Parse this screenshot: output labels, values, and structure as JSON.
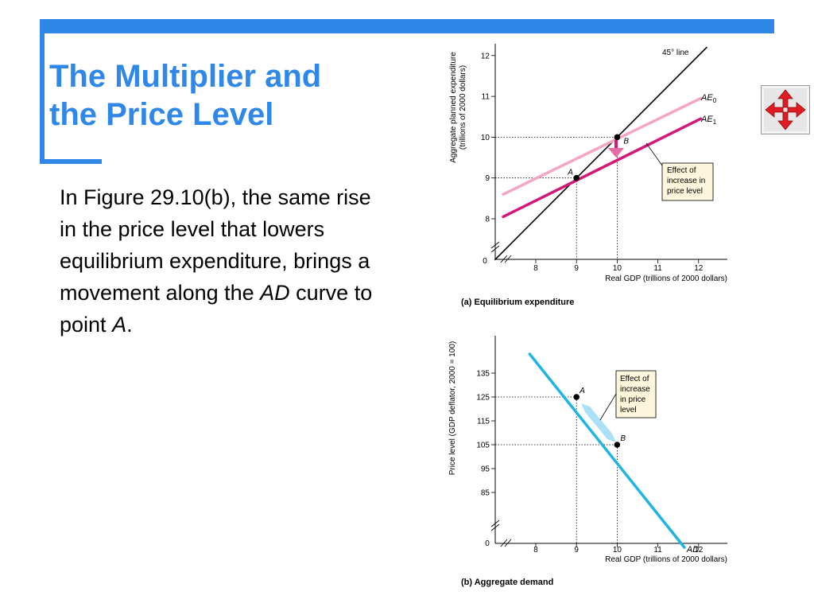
{
  "slide": {
    "title_line1": "The Multiplier and",
    "title_line2": "the Price Level",
    "body": {
      "part1": "In Figure 29.10(b), the same rise in the price level that lowers equilibrium expenditure, brings a movement along the ",
      "ad": "AD",
      "part2": " curve to point ",
      "a": "A",
      "part3": "."
    }
  },
  "nav_icon": "move-arrows-icon",
  "colors": {
    "accent": "#2f87e8",
    "ae0": "#f4a6c2",
    "ae1": "#d4177a",
    "ad": "#1fb3e6",
    "note_bg": "#fdf6dc",
    "nav_red": "#e11b22"
  },
  "chart_data": [
    {
      "type": "line",
      "caption": "(a) Equilibrium expenditure",
      "xlabel": "Real GDP (trillions of 2000 dollars)",
      "ylabel_line1": "Aggregate planned expenditure",
      "ylabel_line2": "(trillions of 2000 dollars)",
      "x_ticks": [
        "8",
        "9",
        "10",
        "11",
        "12"
      ],
      "y_ticks": [
        "8",
        "9",
        "10",
        "11",
        "12"
      ],
      "origin_label": "0",
      "xlim": [
        7,
        12.7
      ],
      "ylim": [
        7,
        12.2
      ],
      "series": [
        {
          "name": "45° line",
          "x": [
            7,
            12.2
          ],
          "y": [
            7,
            12.2
          ]
        },
        {
          "name": "AE0",
          "x": [
            7.2,
            12.05
          ],
          "y": [
            8.6,
            10.95
          ]
        },
        {
          "name": "AE1",
          "x": [
            7.2,
            12.05
          ],
          "y": [
            8.05,
            10.45
          ]
        }
      ],
      "points": [
        {
          "label": "A",
          "x": 9,
          "y": 9
        },
        {
          "label": "B",
          "x": 10,
          "y": 10
        }
      ],
      "annotation": [
        "Effect of",
        "increase in",
        "price level"
      ]
    },
    {
      "type": "line",
      "caption": "(b) Aggregate demand",
      "xlabel": "Real GDP (trillions of 2000 dollars)",
      "ylabel": "Price level (GDP deflator, 2000 = 100)",
      "x_ticks": [
        "8",
        "9",
        "10",
        "11",
        "12"
      ],
      "y_ticks": [
        "85",
        "95",
        "105",
        "115",
        "125",
        "135"
      ],
      "origin_label": "0",
      "xlim": [
        7,
        12.7
      ],
      "ylim": [
        55,
        150
      ],
      "series": [
        {
          "name": "AD",
          "x": [
            7.85,
            11.65
          ],
          "y": [
            143,
            62
          ]
        }
      ],
      "points": [
        {
          "label": "A",
          "x": 9,
          "y": 125
        },
        {
          "label": "B",
          "x": 10,
          "y": 105
        }
      ],
      "annotation": [
        "Effect of",
        "increase",
        "in price",
        "level"
      ]
    }
  ]
}
